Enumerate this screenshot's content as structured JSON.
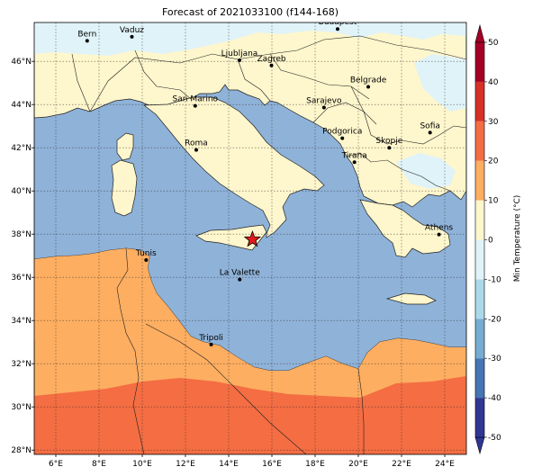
{
  "title": "Forecast of 2021033100 (f144-168)",
  "map": {
    "lon_range": [
      5,
      25
    ],
    "lat_range": [
      27.8,
      47.8
    ],
    "lon_ticks": [
      "6°E",
      "8°E",
      "10°E",
      "12°E",
      "14°E",
      "16°E",
      "18°E",
      "20°E",
      "22°E",
      "24°E"
    ],
    "lat_ticks": [
      "28°N",
      "30°N",
      "32°N",
      "34°N",
      "36°N",
      "38°N",
      "40°N",
      "42°N",
      "44°N",
      "46°N"
    ],
    "grid": true,
    "colors": {
      "sea": "#8fb2d8",
      "land_cool": "#e0f3f8",
      "land_mild": "#fef6cc",
      "band_10_20": "#fdae61",
      "band_20_30": "#f46d43",
      "band_30_40": "#d73027"
    },
    "cities": [
      {
        "name": "Bern",
        "lon": 7.45,
        "lat": 46.95
      },
      {
        "name": "Vaduz",
        "lon": 9.52,
        "lat": 47.14
      },
      {
        "name": "Budapest",
        "lon": 19.04,
        "lat": 47.5
      },
      {
        "name": "Ljubljana",
        "lon": 14.5,
        "lat": 46.05
      },
      {
        "name": "Zagreb",
        "lon": 15.98,
        "lat": 45.81
      },
      {
        "name": "Belgrade",
        "lon": 20.46,
        "lat": 44.82
      },
      {
        "name": "San Marino",
        "lon": 12.45,
        "lat": 43.94
      },
      {
        "name": "Sarajevo",
        "lon": 18.41,
        "lat": 43.86
      },
      {
        "name": "Sofia",
        "lon": 23.32,
        "lat": 42.7
      },
      {
        "name": "Podgorica",
        "lon": 19.26,
        "lat": 42.44
      },
      {
        "name": "Skopje",
        "lon": 21.43,
        "lat": 42.0
      },
      {
        "name": "Roma",
        "lon": 12.5,
        "lat": 41.9
      },
      {
        "name": "Tirana",
        "lon": 19.82,
        "lat": 41.33
      },
      {
        "name": "Athens",
        "lon": 23.73,
        "lat": 37.98
      },
      {
        "name": "Tunis",
        "lon": 10.18,
        "lat": 36.8
      },
      {
        "name": "La Valette",
        "lon": 14.51,
        "lat": 35.9
      },
      {
        "name": "Tripoli",
        "lon": 13.19,
        "lat": 32.89
      }
    ],
    "marker": {
      "symbol": "star",
      "lon": 15.1,
      "lat": 37.75,
      "color": "#e31a1c"
    }
  },
  "colorbar": {
    "label": "Min Temperature (°C)",
    "ticks": [
      "-50",
      "-40",
      "-30",
      "-20",
      "-10",
      "0",
      "10",
      "20",
      "30",
      "40",
      "50"
    ],
    "colors": [
      "#313695",
      "#4575b4",
      "#74add1",
      "#abd9e9",
      "#e0f3f8",
      "#ffffbf",
      "#fee090",
      "#fdae61",
      "#f46d43",
      "#d73027",
      "#a50026"
    ]
  }
}
